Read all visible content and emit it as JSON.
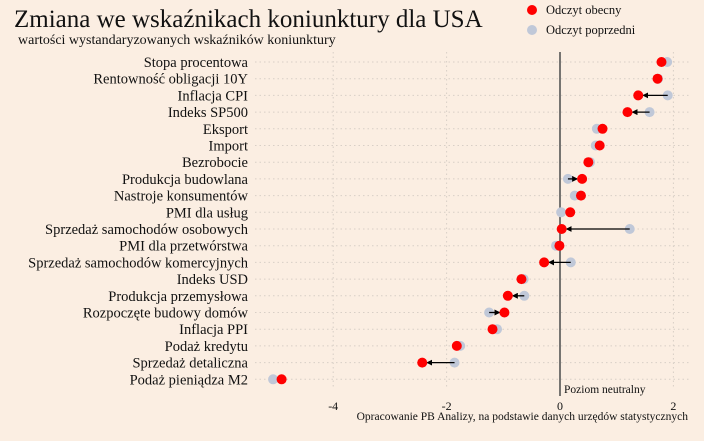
{
  "chart_data": {
    "type": "scatter",
    "subtype": "dumbbell-arrow",
    "title": "Zmiana we wskaźnikach koniunktury dla USA",
    "subtitle": "wartości wystandaryzowanych wskaźników koniunktury",
    "xlim": [
      -5.3,
      2.3
    ],
    "xticks": [
      -4,
      -2,
      0,
      2
    ],
    "xtick_labels": [
      "-4",
      "-2",
      "0",
      "2"
    ],
    "neutral_label": "Poziom neutralny",
    "source": "Opracowanie PB Analizy, na podstawie danych urzędów statystycznych",
    "legend": [
      {
        "name": "Odczyt obecny",
        "color": "#ff0000"
      },
      {
        "name": "Odczyt poprzedni",
        "color": "#c0c8d8"
      }
    ],
    "legend_position": "top-right",
    "categories": [
      "Stopa procentowa",
      "Rentowność obligacji 10Y",
      "Inflacja CPI",
      "Indeks SP500",
      "Eksport",
      "Import",
      "Bezrobocie",
      "Produkcja budowlana",
      "Nastroje konsumentów",
      "PMI dla usług",
      "Sprzedaż samochodów osobowych",
      "PMI dla przetwórstwa",
      "Sprzedaż samochodów komercyjnych",
      "Indeks USD",
      "Produkcja przemysłowa",
      "Rozpoczęte budowy domów",
      "Inflacja PPI",
      "Podaż kredytu",
      "Sprzedaż detaliczna",
      "Podaż pieniądza M2"
    ],
    "series": [
      {
        "name": "Odczyt obecny",
        "values": [
          1.79,
          1.72,
          1.38,
          1.19,
          0.75,
          0.7,
          0.5,
          0.39,
          0.37,
          0.18,
          0.03,
          -0.01,
          -0.28,
          -0.68,
          -0.92,
          -0.98,
          -1.19,
          -1.82,
          -2.43,
          -4.91
        ]
      },
      {
        "name": "Odczyt poprzedni",
        "values": [
          1.89,
          1.73,
          1.9,
          1.58,
          0.65,
          0.63,
          0.53,
          0.14,
          0.26,
          0.02,
          1.23,
          -0.07,
          0.19,
          -0.64,
          -0.63,
          -1.25,
          -1.11,
          -1.76,
          -1.86,
          -5.06
        ]
      }
    ]
  }
}
